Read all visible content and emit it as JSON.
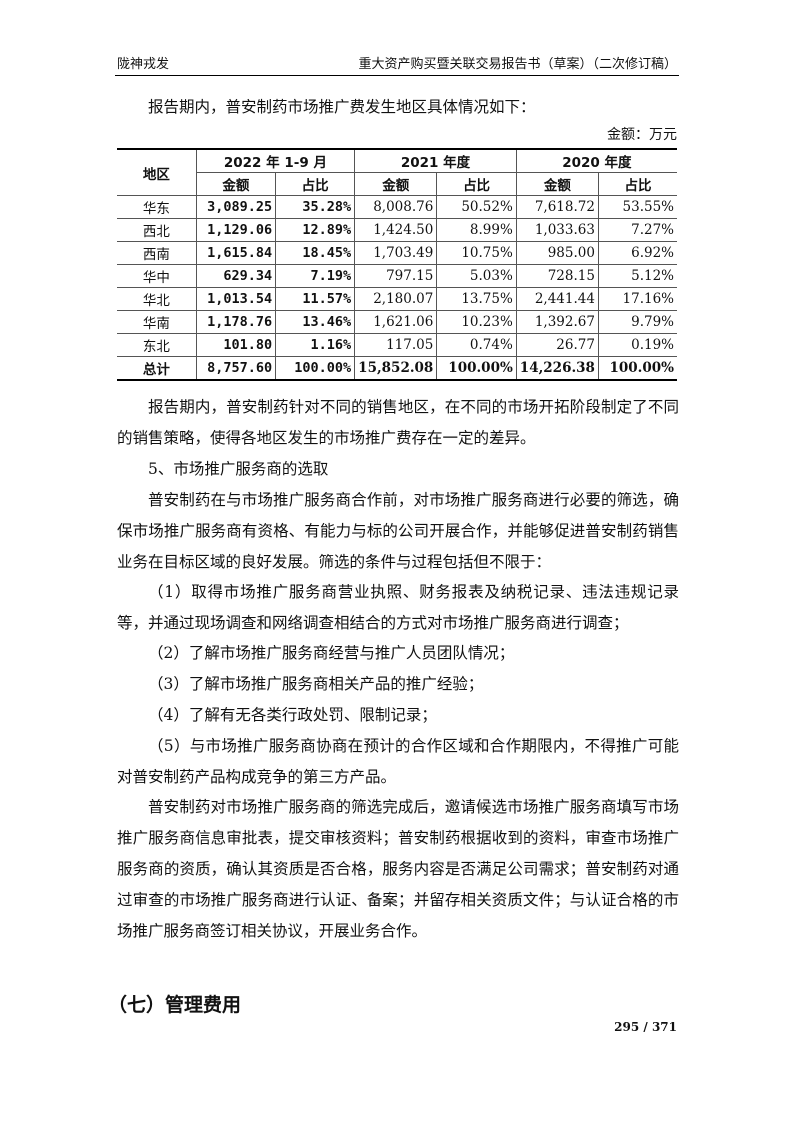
{
  "header": {
    "left": "陇神戎发",
    "right": "重大资产购买暨关联交易报告书（草案）（二次修订稿）"
  },
  "intro": "报告期内，普安制药市场推广费发生地区具体情况如下：",
  "unit": "金额：万元",
  "table": {
    "region_header": "地区",
    "periods": [
      "2022 年 1-9 月",
      "2021 年度",
      "2020 年度"
    ],
    "sub": [
      "金额",
      "占比"
    ],
    "rows": [
      [
        "华东",
        "3,089.25",
        "35.28%",
        "8,008.76",
        "50.52%",
        "7,618.72",
        "53.55%"
      ],
      [
        "西北",
        "1,129.06",
        "12.89%",
        "1,424.50",
        "8.99%",
        "1,033.63",
        "7.27%"
      ],
      [
        "西南",
        "1,615.84",
        "18.45%",
        "1,703.49",
        "10.75%",
        "985.00",
        "6.92%"
      ],
      [
        "华中",
        "629.34",
        "7.19%",
        "797.15",
        "5.03%",
        "728.15",
        "5.12%"
      ],
      [
        "华北",
        "1,013.54",
        "11.57%",
        "2,180.07",
        "13.75%",
        "2,441.44",
        "17.16%"
      ],
      [
        "华南",
        "1,178.76",
        "13.46%",
        "1,621.06",
        "10.23%",
        "1,392.67",
        "9.79%"
      ],
      [
        "东北",
        "101.80",
        "1.16%",
        "117.05",
        "0.74%",
        "26.77",
        "0.19%"
      ]
    ],
    "total": [
      "总计",
      "8,757.60",
      "100.00%",
      "15,852.08",
      "100.00%",
      "14,226.38",
      "100.00%"
    ]
  },
  "paragraphs": [
    "报告期内，普安制药针对不同的销售地区，在不同的市场开拓阶段制定了不同的销售策略，使得各地区发生的市场推广费存在一定的差异。",
    "5、市场推广服务商的选取",
    "普安制药在与市场推广服务商合作前，对市场推广服务商进行必要的筛选，确保市场推广服务商有资格、有能力与标的公司开展合作，并能够促进普安制药销售业务在目标区域的良好发展。筛选的条件与过程包括但不限于：",
    "（1）取得市场推广服务商营业执照、财务报表及纳税记录、违法违规记录等，并通过现场调查和网络调查相结合的方式对市场推广服务商进行调查；",
    "（2）了解市场推广服务商经营与推广人员团队情况；",
    "（3）了解市场推广服务商相关产品的推广经验；",
    "（4）了解有无各类行政处罚、限制记录；",
    "（5）与市场推广服务商协商在预计的合作区域和合作期限内，不得推广可能对普安制药产品构成竞争的第三方产品。",
    "普安制药对市场推广服务商的筛选完成后，邀请候选市场推广服务商填写市场推广服务商信息审批表，提交审核资料；普安制药根据收到的资料，审查市场推广服务商的资质，确认其资质是否合格，服务内容是否满足公司需求；普安制药对通过审查的市场推广服务商进行认证、备案；并留存相关资质文件；与认证合格的市场推广服务商签订相关协议，开展业务合作。"
  ],
  "section_heading": "（七）管理费用",
  "page_number": "295 / 371"
}
